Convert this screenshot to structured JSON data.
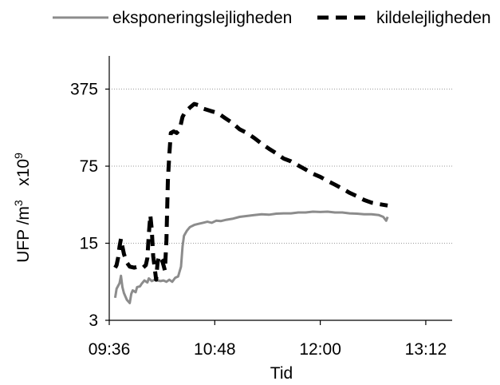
{
  "chart_data": {
    "type": "line",
    "title": "",
    "xlabel": "Tid",
    "ylabel_parts": [
      "UFP /m",
      "3",
      "   x10",
      "9"
    ],
    "yscale": "log",
    "ylim": [
      3,
      750
    ],
    "yticks": [
      3,
      15,
      75,
      375
    ],
    "ytick_labels": [
      "3",
      "15",
      "75",
      "375"
    ],
    "xlim": [
      "09:36",
      "13:30"
    ],
    "xticks": [
      "09:36",
      "10:48",
      "12:00",
      "13:12"
    ],
    "grid": "horizontal dotted",
    "legend_position": "top",
    "series": [
      {
        "name": "eksponeringslejligheden",
        "color": "#8c8c8c",
        "dash": "solid",
        "points": [
          [
            "09:40",
            4.8
          ],
          [
            "09:41",
            5.8
          ],
          [
            "09:43",
            6.5
          ],
          [
            "09:44",
            7.6
          ],
          [
            "09:45",
            6.0
          ],
          [
            "09:46",
            5.3
          ],
          [
            "09:48",
            4.6
          ],
          [
            "09:50",
            4.3
          ],
          [
            "09:51",
            5.2
          ],
          [
            "09:52",
            5.6
          ],
          [
            "09:54",
            5.4
          ],
          [
            "09:55",
            6.0
          ],
          [
            "09:57",
            6.1
          ],
          [
            "09:58",
            6.4
          ],
          [
            "10:00",
            6.9
          ],
          [
            "10:02",
            6.6
          ],
          [
            "10:03",
            7.2
          ],
          [
            "10:05",
            6.8
          ],
          [
            "10:07",
            7.0
          ],
          [
            "10:09",
            6.9
          ],
          [
            "10:11",
            6.8
          ],
          [
            "10:13",
            6.9
          ],
          [
            "10:15",
            6.7
          ],
          [
            "10:17",
            7.0
          ],
          [
            "10:19",
            6.7
          ],
          [
            "10:21",
            7.3
          ],
          [
            "10:23",
            7.5
          ],
          [
            "10:25",
            9.2
          ],
          [
            "10:26",
            14.0
          ],
          [
            "10:27",
            17.5
          ],
          [
            "10:29",
            19.5
          ],
          [
            "10:31",
            21.0
          ],
          [
            "10:34",
            22.0
          ],
          [
            "10:37",
            22.5
          ],
          [
            "10:40",
            23.0
          ],
          [
            "10:43",
            23.5
          ],
          [
            "10:46",
            23.0
          ],
          [
            "10:49",
            24.0
          ],
          [
            "10:52",
            23.8
          ],
          [
            "10:56",
            24.5
          ],
          [
            "11:00",
            25.0
          ],
          [
            "11:05",
            26.0
          ],
          [
            "11:10",
            26.5
          ],
          [
            "11:15",
            27.0
          ],
          [
            "11:20",
            27.5
          ],
          [
            "11:25",
            27.2
          ],
          [
            "11:30",
            27.8
          ],
          [
            "11:35",
            28.0
          ],
          [
            "11:40",
            28.0
          ],
          [
            "11:45",
            28.5
          ],
          [
            "11:50",
            28.5
          ],
          [
            "11:55",
            29.0
          ],
          [
            "12:00",
            28.8
          ],
          [
            "12:05",
            29.0
          ],
          [
            "12:10",
            28.5
          ],
          [
            "12:15",
            28.5
          ],
          [
            "12:20",
            28.0
          ],
          [
            "12:25",
            27.8
          ],
          [
            "12:30",
            27.5
          ],
          [
            "12:35",
            27.5
          ],
          [
            "12:40",
            27.0
          ],
          [
            "12:43",
            26.0
          ],
          [
            "12:45",
            24.0
          ],
          [
            "12:46",
            26.0
          ]
        ]
      },
      {
        "name": "kildelejligheden",
        "color": "#000000",
        "dash": "dashed",
        "points": [
          [
            "09:40",
            9.0
          ],
          [
            "09:41",
            9.5
          ],
          [
            "09:42",
            11.0
          ],
          [
            "09:43",
            14.0
          ],
          [
            "09:44",
            16.5
          ],
          [
            "09:45",
            14.0
          ],
          [
            "09:46",
            12.0
          ],
          [
            "09:48",
            10.0
          ],
          [
            "09:50",
            9.2
          ],
          [
            "09:53",
            9.0
          ],
          [
            "09:56",
            9.2
          ],
          [
            "09:59",
            9.0
          ],
          [
            "10:01",
            9.5
          ],
          [
            "10:02",
            11.0
          ],
          [
            "10:03",
            18.0
          ],
          [
            "10:04",
            27.0
          ],
          [
            "10:05",
            20.0
          ],
          [
            "10:06",
            11.5
          ],
          [
            "10:08",
            7.0
          ],
          [
            "10:09",
            10.0
          ],
          [
            "10:10",
            11.5
          ],
          [
            "10:12",
            10.5
          ],
          [
            "10:13",
            9.5
          ],
          [
            "10:14",
            8.5
          ],
          [
            "10:15",
            16.0
          ],
          [
            "10:16",
            55.0
          ],
          [
            "10:17",
            95.0
          ],
          [
            "10:18",
            150.0
          ],
          [
            "10:20",
            155.0
          ],
          [
            "10:22",
            150.0
          ],
          [
            "10:24",
            160.0
          ],
          [
            "10:26",
            210.0
          ],
          [
            "10:28",
            235.0
          ],
          [
            "10:31",
            255.0
          ],
          [
            "10:34",
            275.0
          ],
          [
            "10:37",
            268.0
          ],
          [
            "10:40",
            250.0
          ],
          [
            "10:45",
            238.0
          ],
          [
            "10:50",
            228.0
          ],
          [
            "10:55",
            205.0
          ],
          [
            "11:00",
            185.0
          ],
          [
            "11:05",
            162.0
          ],
          [
            "11:10",
            150.0
          ],
          [
            "11:15",
            135.0
          ],
          [
            "11:20",
            120.0
          ],
          [
            "11:25",
            108.0
          ],
          [
            "11:30",
            98.0
          ],
          [
            "11:35",
            88.0
          ],
          [
            "11:40",
            83.0
          ],
          [
            "11:45",
            76.0
          ],
          [
            "11:50",
            70.0
          ],
          [
            "11:55",
            64.0
          ],
          [
            "12:00",
            60.0
          ],
          [
            "12:05",
            55.0
          ],
          [
            "12:10",
            51.0
          ],
          [
            "12:15",
            47.0
          ],
          [
            "12:20",
            43.0
          ],
          [
            "12:25",
            40.0
          ],
          [
            "12:30",
            37.0
          ],
          [
            "12:35",
            35.0
          ],
          [
            "12:40",
            34.0
          ],
          [
            "12:46",
            33.0
          ]
        ]
      }
    ]
  }
}
